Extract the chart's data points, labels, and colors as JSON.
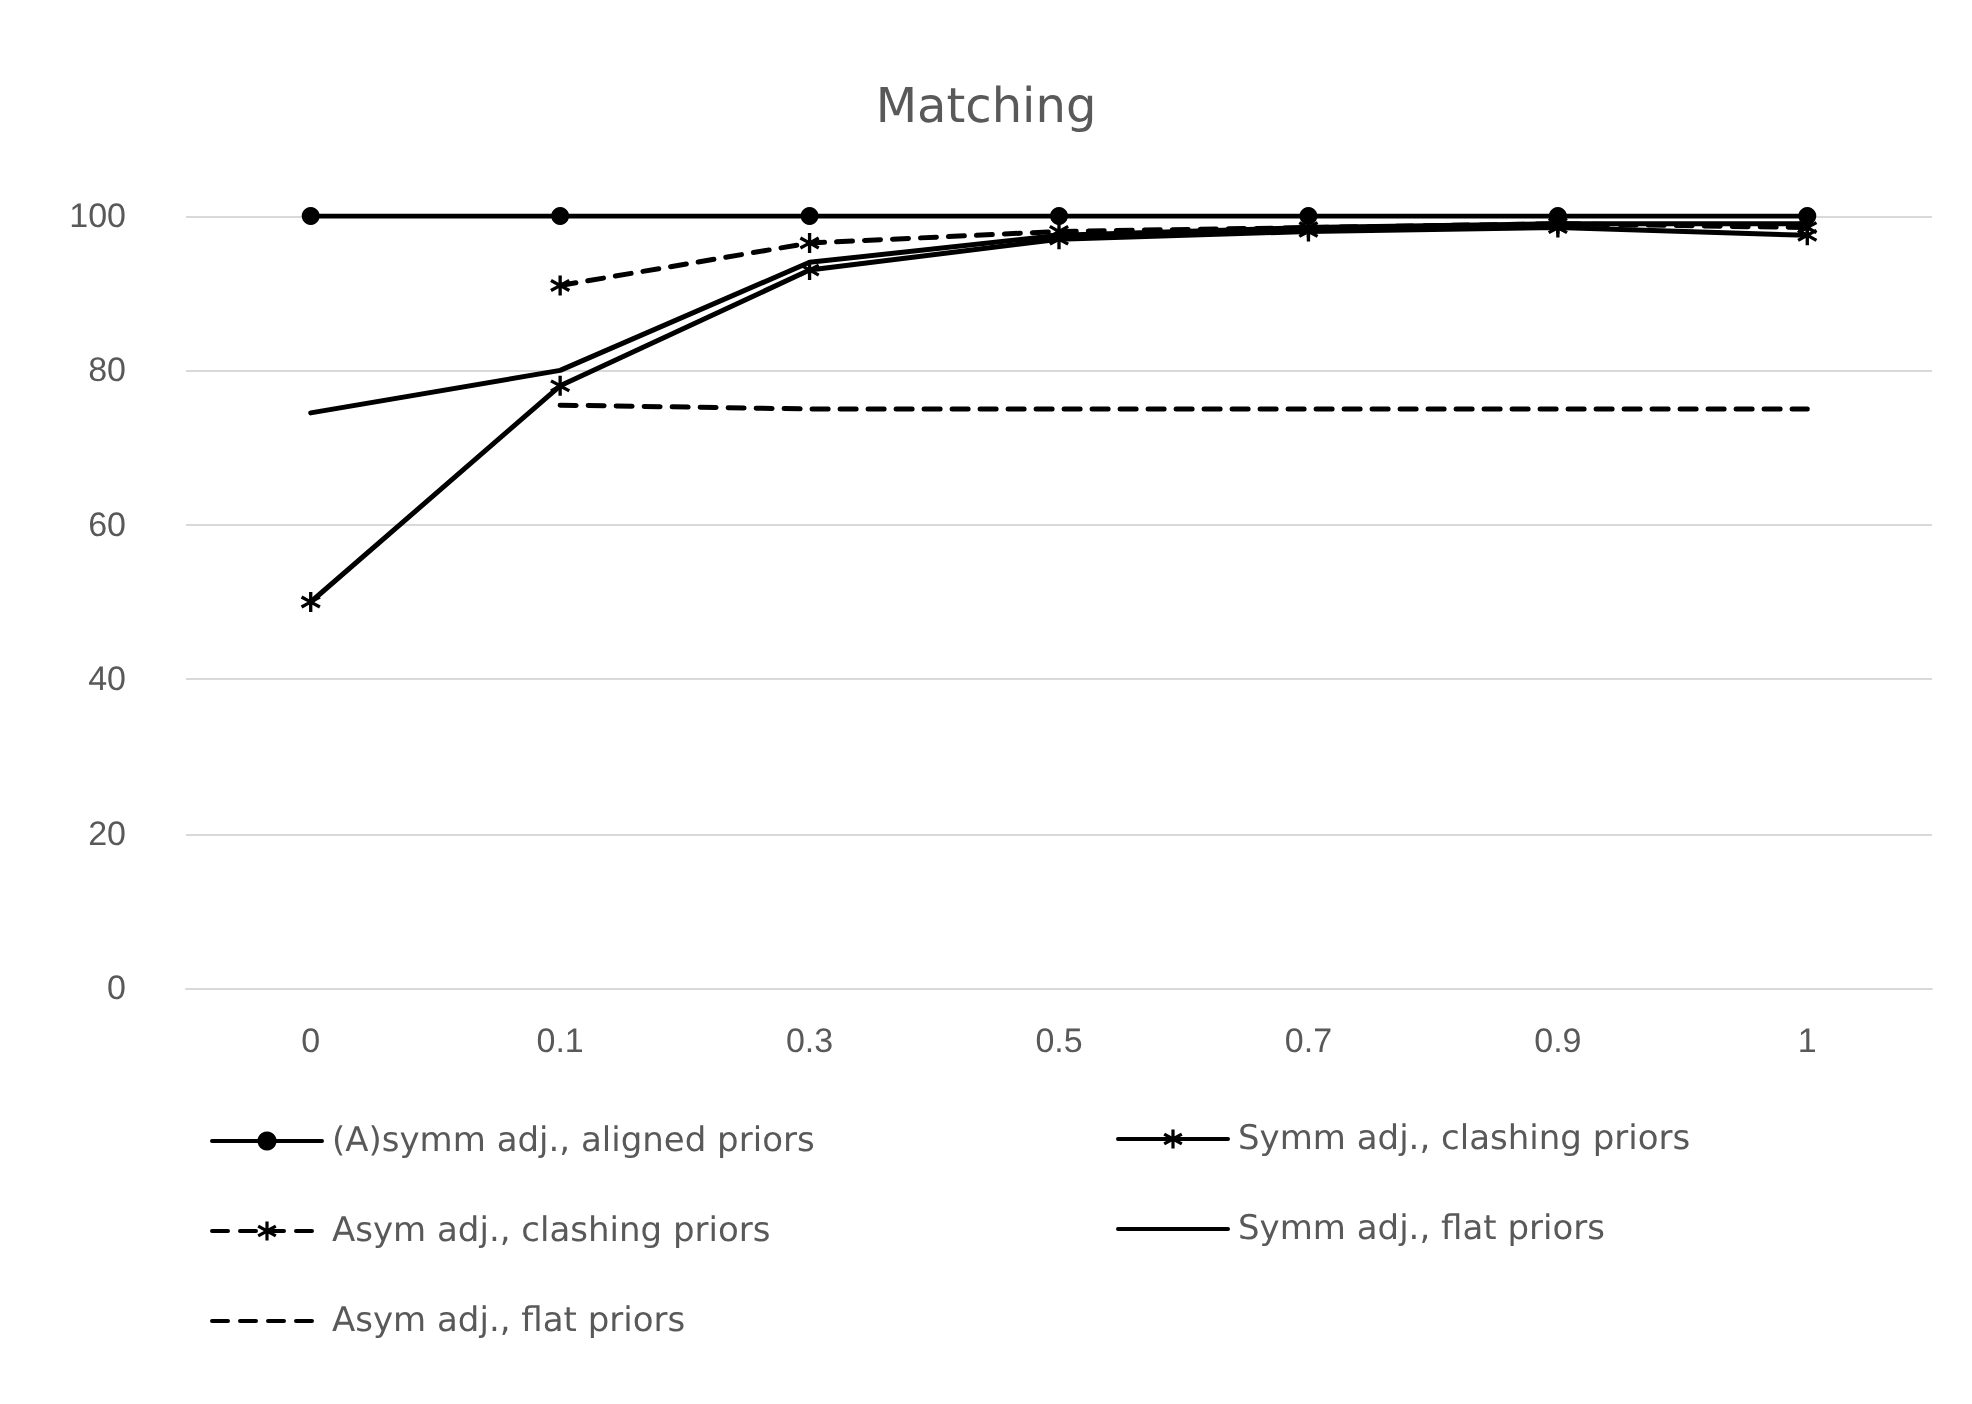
{
  "chart_data": {
    "type": "line",
    "title": "Matching",
    "categories": [
      "0",
      "0.1",
      "0.3",
      "0.5",
      "0.7",
      "0.9",
      "1"
    ],
    "series": [
      {
        "name": "(A)symm adj., aligned priors",
        "color": "#000000",
        "marker": "circle",
        "line_style": "solid",
        "values": [
          100,
          100,
          100,
          100,
          100,
          100,
          100
        ]
      },
      {
        "name": "Symm adj., clashing priors",
        "color": "#000000",
        "marker": "cross",
        "line_style": "solid",
        "values": [
          50,
          78,
          93,
          97,
          98,
          98.5,
          97.5
        ]
      },
      {
        "name": "Asym adj., clashing priors",
        "color": "#000000",
        "marker": "cross",
        "line_style": "dashed",
        "values": [
          null,
          91,
          96.5,
          98,
          98.5,
          99,
          98.5
        ]
      },
      {
        "name": "Symm adj., flat priors",
        "color": "#000000",
        "marker": "none",
        "line_style": "solid",
        "values": [
          74.5,
          80,
          94,
          97.5,
          98.5,
          99,
          99
        ]
      },
      {
        "name": "Asym adj., flat priors",
        "color": "#000000",
        "marker": "none",
        "line_style": "dashed",
        "values": [
          null,
          75.5,
          75,
          75,
          75,
          75,
          75
        ]
      }
    ],
    "ylim": [
      0,
      100
    ],
    "yticks": [
      0,
      20,
      40,
      60,
      80,
      100
    ],
    "grid": "y",
    "legend": "bottom"
  }
}
